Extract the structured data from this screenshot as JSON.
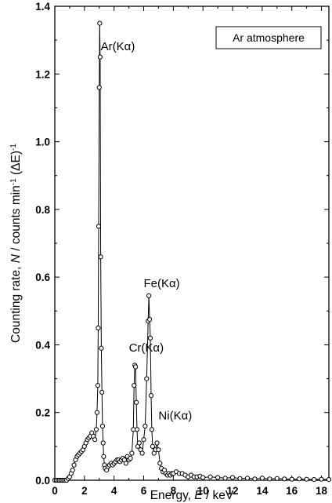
{
  "chart_data": {
    "type": "line",
    "title": "",
    "xlabel": "Energy, E / keV",
    "ylabel": "Counting rate, N / counts min-1 (ΔE)-1",
    "xlim": [
      0,
      18.5
    ],
    "ylim": [
      0,
      1.4
    ],
    "xticks": [
      "0",
      "2",
      "4",
      "6",
      "8",
      "10",
      "12",
      "14",
      "16",
      "18"
    ],
    "yticks": [
      "0.0",
      "0.2",
      "0.4",
      "0.6",
      "0.8",
      "1.0",
      "1.2",
      "1.4"
    ],
    "grid": false,
    "legend_box": "Ar atmosphere",
    "annotations": [
      {
        "text": "Ar(Kα)",
        "x": 3.1,
        "y": 1.27
      },
      {
        "text": "Cr(Kα)",
        "x": 5.0,
        "y": 0.38
      },
      {
        "text": "Fe(Kα)",
        "x": 6.0,
        "y": 0.57
      },
      {
        "text": "Ni(Kα)",
        "x": 7.0,
        "y": 0.18
      }
    ],
    "series": [
      {
        "marker": "open-circle",
        "x": [
          0.0,
          0.1,
          0.2,
          0.3,
          0.4,
          0.5,
          0.6,
          0.7,
          0.8,
          0.9,
          1.0,
          1.1,
          1.2,
          1.3,
          1.4,
          1.5,
          1.6,
          1.7,
          1.8,
          1.9,
          2.0,
          2.1,
          2.2,
          2.3,
          2.4,
          2.5,
          2.6,
          2.7,
          2.8,
          2.85,
          2.9,
          2.93,
          2.96,
          3.0,
          3.03,
          3.06,
          3.1,
          3.14,
          3.18,
          3.22,
          3.26,
          3.3,
          3.35,
          3.4,
          3.5,
          3.6,
          3.7,
          3.8,
          3.9,
          4.0,
          4.1,
          4.2,
          4.3,
          4.4,
          4.5,
          4.6,
          4.7,
          4.8,
          4.9,
          5.0,
          5.1,
          5.2,
          5.3,
          5.35,
          5.4,
          5.45,
          5.5,
          5.55,
          5.6,
          5.7,
          5.8,
          5.9,
          6.0,
          6.1,
          6.2,
          6.3,
          6.35,
          6.4,
          6.45,
          6.5,
          6.55,
          6.6,
          6.7,
          6.8,
          6.9,
          7.0,
          7.1,
          7.2,
          7.3,
          7.4,
          7.5,
          7.6,
          7.7,
          7.8,
          7.9,
          8.0,
          8.2,
          8.4,
          8.6,
          8.8,
          9.0,
          9.2,
          9.4,
          9.6,
          9.8,
          10.0,
          10.5,
          11.0,
          11.5,
          12.0,
          12.5,
          13.0,
          13.5,
          14.0,
          14.5,
          15.0,
          15.5,
          16.0,
          16.5,
          17.0,
          17.5,
          18.0,
          18.5
        ],
        "y": [
          0.0,
          0.0,
          0.0,
          0.0,
          0.0,
          0.0,
          0.0,
          0.0,
          0.0,
          0.005,
          0.01,
          0.02,
          0.03,
          0.045,
          0.06,
          0.07,
          0.075,
          0.08,
          0.085,
          0.09,
          0.1,
          0.11,
          0.12,
          0.125,
          0.13,
          0.14,
          0.13,
          0.12,
          0.15,
          0.2,
          0.28,
          0.45,
          0.75,
          1.16,
          1.35,
          1.25,
          0.66,
          0.39,
          0.26,
          0.16,
          0.11,
          0.07,
          0.045,
          0.035,
          0.03,
          0.04,
          0.045,
          0.05,
          0.045,
          0.05,
          0.055,
          0.06,
          0.06,
          0.055,
          0.06,
          0.065,
          0.06,
          0.05,
          0.07,
          0.06,
          0.065,
          0.08,
          0.15,
          0.28,
          0.34,
          0.335,
          0.23,
          0.15,
          0.1,
          0.11,
          0.09,
          0.08,
          0.12,
          0.16,
          0.3,
          0.47,
          0.545,
          0.475,
          0.42,
          0.25,
          0.15,
          0.1,
          0.08,
          0.09,
          0.11,
          0.09,
          0.05,
          0.035,
          0.025,
          0.03,
          0.02,
          0.015,
          0.02,
          0.015,
          0.02,
          0.02,
          0.025,
          0.02,
          0.02,
          0.015,
          0.01,
          0.015,
          0.01,
          0.01,
          0.012,
          0.008,
          0.01,
          0.008,
          0.006,
          0.008,
          0.005,
          0.006,
          0.004,
          0.006,
          0.004,
          0.005,
          0.004,
          0.003,
          0.004,
          0.003,
          0.002,
          0.003,
          0.002
        ]
      }
    ]
  }
}
